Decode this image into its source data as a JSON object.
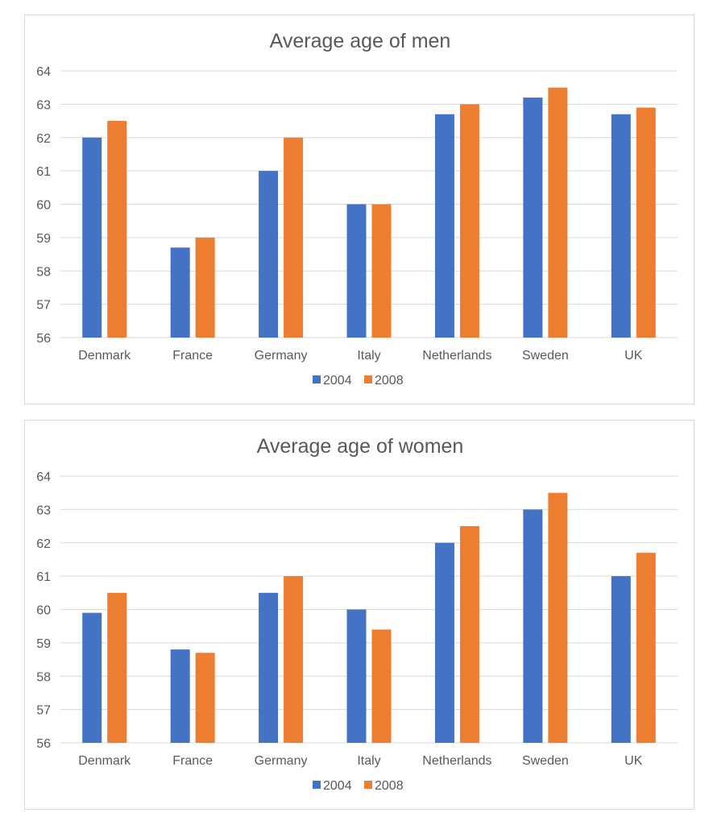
{
  "chart_data": [
    {
      "type": "bar",
      "title": "Average age of men",
      "categories": [
        "Denmark",
        "France",
        "Germany",
        "Italy",
        "Netherlands",
        "Sweden",
        "UK"
      ],
      "series": [
        {
          "name": "2004",
          "color": "#4472c4",
          "values": [
            62.0,
            58.7,
            61.0,
            60.0,
            62.7,
            63.2,
            62.7
          ]
        },
        {
          "name": "2008",
          "color": "#ed7d31",
          "values": [
            62.5,
            59.0,
            62.0,
            60.0,
            63.0,
            63.5,
            62.9
          ]
        }
      ],
      "ylim": [
        56,
        64
      ],
      "yticks": [
        "56",
        "57",
        "58",
        "59",
        "60",
        "61",
        "62",
        "63",
        "64"
      ],
      "grid": true,
      "legend_position": "bottom"
    },
    {
      "type": "bar",
      "title": "Average age of women",
      "categories": [
        "Denmark",
        "France",
        "Germany",
        "Italy",
        "Netherlands",
        "Sweden",
        "UK"
      ],
      "series": [
        {
          "name": "2004",
          "color": "#4472c4",
          "values": [
            59.9,
            58.8,
            60.5,
            60.0,
            62.0,
            63.0,
            61.0
          ]
        },
        {
          "name": "2008",
          "color": "#ed7d31",
          "values": [
            60.5,
            58.7,
            61.0,
            59.4,
            62.5,
            63.5,
            61.7
          ]
        }
      ],
      "ylim": [
        56,
        64
      ],
      "yticks": [
        "56",
        "57",
        "58",
        "59",
        "60",
        "61",
        "62",
        "63",
        "64"
      ],
      "grid": true,
      "legend_position": "bottom"
    }
  ]
}
